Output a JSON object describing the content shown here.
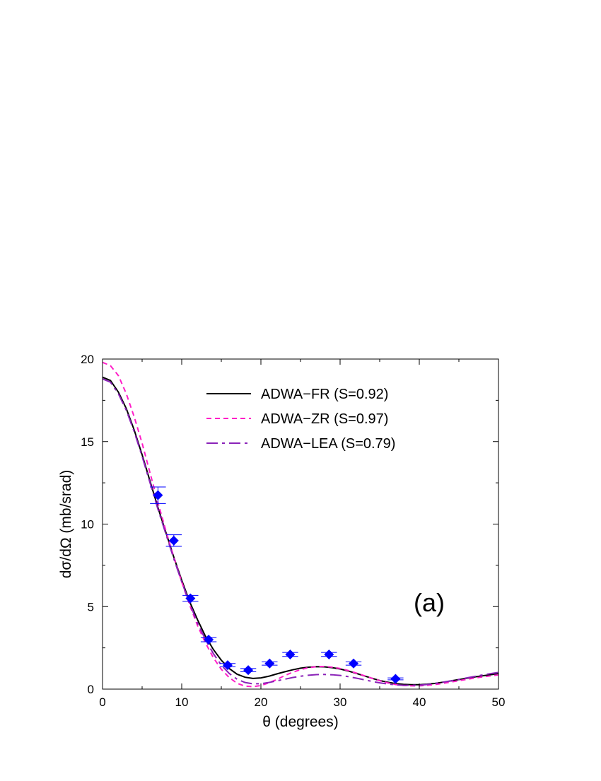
{
  "chart_data": {
    "type": "line",
    "xlabel": "θ (degrees)",
    "ylabel": "dσ/dΩ (mb/srad)",
    "xlim": [
      0,
      50
    ],
    "ylim": [
      0,
      20
    ],
    "xticks": [
      0,
      10,
      20,
      30,
      40,
      50
    ],
    "yticks": [
      0,
      5,
      10,
      15,
      20
    ],
    "grid": false,
    "legend_position": "top-right",
    "annotation": "(a)",
    "series": [
      {
        "name": "ADWA−FR (S=0.92)",
        "style": "solid",
        "color": "#000000",
        "x": [
          0,
          1,
          2,
          3,
          4,
          5,
          6,
          7,
          8,
          9,
          10,
          11,
          12,
          13,
          14,
          15,
          16,
          17,
          18,
          19,
          20,
          21,
          22,
          23,
          24,
          25,
          26,
          27,
          28,
          29,
          30,
          31,
          32,
          33,
          34,
          35,
          36,
          37,
          38,
          39,
          40,
          41,
          42,
          43,
          44,
          45,
          46,
          47,
          48,
          49,
          50
        ],
        "y": [
          18.9,
          18.7,
          18.0,
          17.0,
          15.7,
          14.2,
          12.6,
          11.0,
          9.5,
          8.0,
          6.6,
          5.3,
          4.2,
          3.2,
          2.4,
          1.75,
          1.25,
          0.9,
          0.72,
          0.65,
          0.68,
          0.78,
          0.92,
          1.05,
          1.17,
          1.27,
          1.33,
          1.36,
          1.35,
          1.3,
          1.22,
          1.1,
          0.96,
          0.81,
          0.66,
          0.52,
          0.42,
          0.34,
          0.29,
          0.27,
          0.27,
          0.3,
          0.35,
          0.42,
          0.5,
          0.58,
          0.66,
          0.74,
          0.81,
          0.87,
          0.93
        ]
      },
      {
        "name": "ADWA−ZR (S=0.97)",
        "style": "short-dash",
        "color": "#ff1ec8",
        "x": [
          0,
          1,
          2,
          3,
          4,
          5,
          6,
          7,
          8,
          9,
          10,
          11,
          12,
          13,
          14,
          15,
          16,
          17,
          18,
          19,
          20,
          21,
          22,
          23,
          24,
          25,
          26,
          27,
          28,
          29,
          30,
          31,
          32,
          33,
          34,
          35,
          36,
          37,
          38,
          39,
          40,
          41,
          42,
          43,
          44,
          45,
          46,
          47,
          48,
          49,
          50
        ],
        "y": [
          19.8,
          19.6,
          19.0,
          17.9,
          16.5,
          14.9,
          13.1,
          11.3,
          9.6,
          8.0,
          6.5,
          5.1,
          3.85,
          2.8,
          1.9,
          1.2,
          0.7,
          0.35,
          0.18,
          0.15,
          0.22,
          0.38,
          0.58,
          0.82,
          1.02,
          1.18,
          1.3,
          1.36,
          1.37,
          1.33,
          1.25,
          1.13,
          0.98,
          0.82,
          0.66,
          0.51,
          0.38,
          0.28,
          0.22,
          0.2,
          0.2,
          0.23,
          0.28,
          0.35,
          0.43,
          0.51,
          0.59,
          0.67,
          0.74,
          0.8,
          0.86
        ]
      },
      {
        "name": "ADWA−LEA (S=0.79)",
        "style": "long-dash",
        "color": "#8a22b8",
        "x": [
          0,
          1,
          2,
          3,
          4,
          5,
          6,
          7,
          8,
          9,
          10,
          11,
          12,
          13,
          14,
          15,
          16,
          17,
          18,
          19,
          20,
          21,
          22,
          23,
          24,
          25,
          26,
          27,
          28,
          29,
          30,
          31,
          32,
          33,
          34,
          35,
          36,
          37,
          38,
          39,
          40,
          41,
          42,
          43,
          44,
          45,
          46,
          47,
          48,
          49,
          50
        ],
        "y": [
          18.8,
          18.6,
          17.9,
          16.9,
          15.6,
          14.1,
          12.5,
          10.9,
          9.4,
          7.9,
          6.5,
          5.2,
          4.0,
          3.0,
          2.15,
          1.45,
          0.95,
          0.6,
          0.4,
          0.32,
          0.33,
          0.4,
          0.5,
          0.6,
          0.7,
          0.78,
          0.84,
          0.88,
          0.89,
          0.87,
          0.83,
          0.76,
          0.67,
          0.57,
          0.47,
          0.38,
          0.31,
          0.26,
          0.23,
          0.23,
          0.24,
          0.28,
          0.34,
          0.42,
          0.5,
          0.59,
          0.68,
          0.77,
          0.86,
          0.94,
          1.01
        ]
      }
    ],
    "data_points": {
      "marker": "diamond",
      "color": "#0000ff",
      "points": [
        {
          "x": 7.0,
          "y": 11.75,
          "xerr": 1.0,
          "yerr": 0.5
        },
        {
          "x": 9.0,
          "y": 9.0,
          "xerr": 1.0,
          "yerr": 0.35
        },
        {
          "x": 11.1,
          "y": 5.5,
          "xerr": 1.0,
          "yerr": 0.18
        },
        {
          "x": 13.4,
          "y": 3.0,
          "xerr": 1.0,
          "yerr": 0.13
        },
        {
          "x": 15.8,
          "y": 1.45,
          "xerr": 1.0,
          "yerr": 0.1
        },
        {
          "x": 18.4,
          "y": 1.15,
          "xerr": 1.0,
          "yerr": 0.1
        },
        {
          "x": 21.1,
          "y": 1.55,
          "xerr": 1.0,
          "yerr": 0.1
        },
        {
          "x": 23.7,
          "y": 2.1,
          "xerr": 1.0,
          "yerr": 0.12
        },
        {
          "x": 28.6,
          "y": 2.1,
          "xerr": 1.0,
          "yerr": 0.12
        },
        {
          "x": 31.7,
          "y": 1.55,
          "xerr": 1.0,
          "yerr": 0.1
        },
        {
          "x": 37.0,
          "y": 0.62,
          "xerr": 1.0,
          "yerr": 0.06
        }
      ]
    }
  }
}
